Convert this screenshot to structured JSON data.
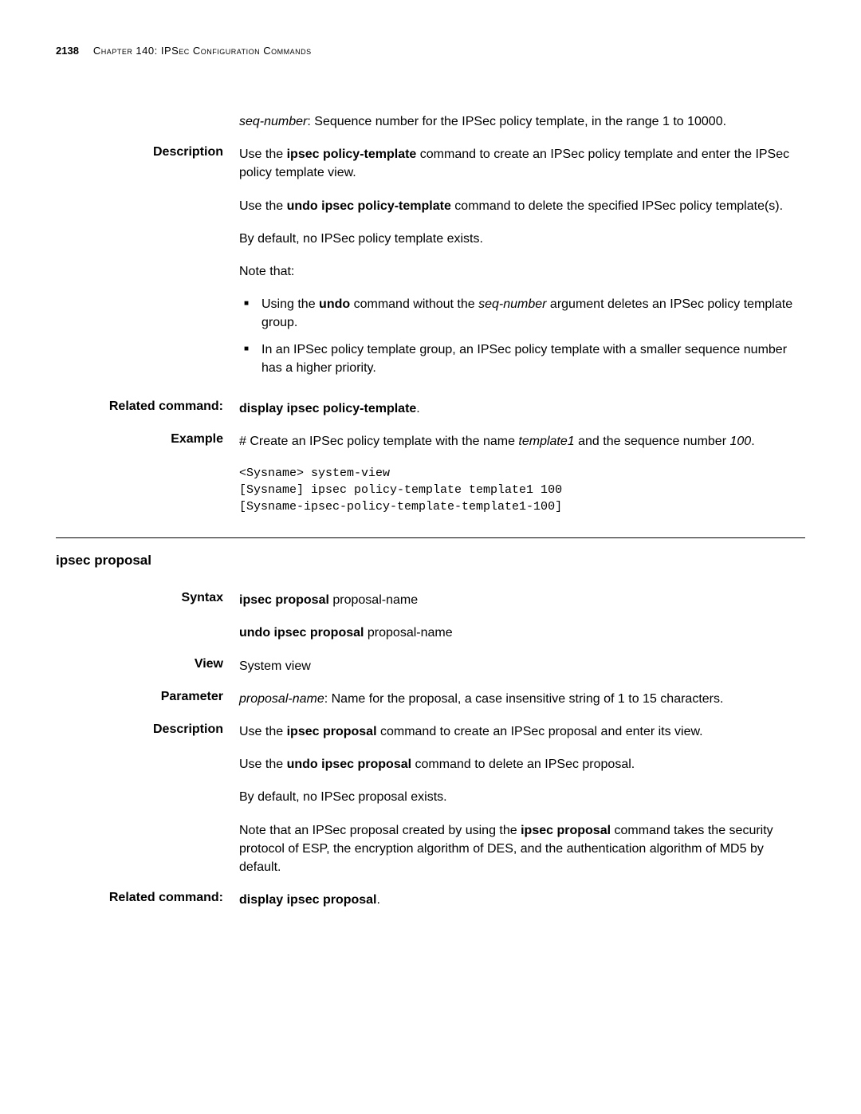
{
  "header": {
    "page_number": "2138",
    "chapter": "Chapter 140: IPSec Configuration Commands"
  },
  "seq_number_block": {
    "text_pre_italic": "",
    "italic": "seq-number",
    "text_post": ": Sequence number for the IPSec policy template, in the range 1 to 10000."
  },
  "description1": {
    "label": "Description",
    "p1_pre": "Use the ",
    "p1_bold": "ipsec policy-template",
    "p1_post": " command to create an IPSec policy template and enter the IPSec policy template view.",
    "p2_pre": "Use the ",
    "p2_bold": "undo ipsec policy-template",
    "p2_post": " command to delete the specified IPSec policy template(s).",
    "p3": "By default, no IPSec policy template exists.",
    "p4": "Note that:",
    "bullet1_pre": "Using the ",
    "bullet1_bold": "undo",
    "bullet1_mid": " command without the ",
    "bullet1_italic": "seq-number",
    "bullet1_post": " argument deletes an IPSec policy template group.",
    "bullet2": "In an IPSec policy template group, an IPSec policy template with a smaller sequence number has a higher priority."
  },
  "related1": {
    "label": "Related command:",
    "bold": "display ipsec policy-template",
    "post": "."
  },
  "example1": {
    "label": "Example",
    "desc_pre": "# Create an IPSec policy template with the name ",
    "desc_italic1": "template1",
    "desc_mid": " and the sequence number ",
    "desc_italic2": "100",
    "desc_post": ".",
    "code": "<Sysname> system-view\n[Sysname] ipsec policy-template template1 100\n[Sysname-ipsec-policy-template-template1-100]"
  },
  "command_heading": "ipsec proposal",
  "syntax2": {
    "label": "Syntax",
    "line1_bold": "ipsec proposal ",
    "line1_post": "proposal-name",
    "line2_bold": "undo ipsec proposal ",
    "line2_post": "proposal-name"
  },
  "view2": {
    "label": "View",
    "text": "System view"
  },
  "parameter2": {
    "label": "Parameter",
    "italic": "proposal-name",
    "post": ": Name for the proposal, a case insensitive string of 1 to 15 characters."
  },
  "description2": {
    "label": "Description",
    "p1_pre": "Use the ",
    "p1_bold": "ipsec proposal",
    "p1_post": " command to create an IPSec proposal and enter its view.",
    "p2_pre": "Use the ",
    "p2_bold": "undo ipsec proposal",
    "p2_post": " command to delete an IPSec proposal.",
    "p3": "By default, no IPSec proposal exists.",
    "p4_pre": "Note that an IPSec proposal created by using the ",
    "p4_bold": "ipsec proposal",
    "p4_post": " command takes the security protocol of ESP, the encryption algorithm of DES, and the authentication algorithm of MD5 by default."
  },
  "related2": {
    "label": "Related command:",
    "bold": "display ipsec proposal",
    "post": "."
  }
}
